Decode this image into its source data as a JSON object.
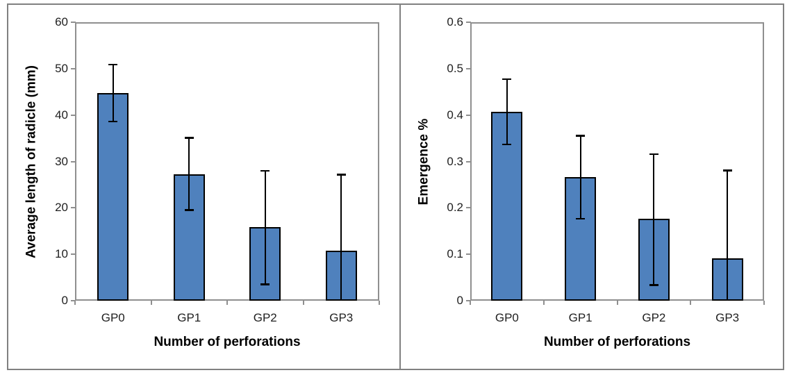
{
  "figure": {
    "background": "#ffffff",
    "frame_color": "#808080",
    "plot_border_color": "#8f8f8f",
    "text_color": "#1f1f1f"
  },
  "chart_data": [
    {
      "type": "bar",
      "panel": "left",
      "categories": [
        "GP0",
        "GP1",
        "GP2",
        "GP3"
      ],
      "values": [
        44.7,
        27.3,
        15.8,
        10.8
      ],
      "error_high": [
        50.9,
        35.1,
        28.0,
        27.2
      ],
      "error_low": [
        38.6,
        19.5,
        3.5,
        0
      ],
      "error_low_capped": [
        true,
        true,
        true,
        false
      ],
      "xlabel": "Number of perforations",
      "ylabel": "Average length of radicle (mm)",
      "ylim": [
        0,
        60
      ],
      "yticks": [
        0,
        10,
        20,
        30,
        40,
        50,
        60
      ],
      "ytick_labels": [
        "0",
        "10",
        "20",
        "30",
        "40",
        "50",
        "60"
      ],
      "bar_color": "#4F81BD",
      "bar_border_color": "#000000",
      "error_bar_color": "#000000",
      "grid": false,
      "legend": null
    },
    {
      "type": "bar",
      "panel": "right",
      "categories": [
        "GP0",
        "GP1",
        "GP2",
        "GP3"
      ],
      "values": [
        0.407,
        0.266,
        0.176,
        0.092
      ],
      "error_high": [
        0.478,
        0.356,
        0.316,
        0.281
      ],
      "error_low": [
        0.336,
        0.176,
        0.033,
        0
      ],
      "error_low_capped": [
        true,
        true,
        true,
        false
      ],
      "xlabel": "Number of perforations",
      "ylabel": "Emergence %",
      "ylim": [
        0,
        0.6
      ],
      "yticks": [
        0,
        0.1,
        0.2,
        0.3,
        0.4,
        0.5,
        0.6
      ],
      "ytick_labels": [
        "0",
        "0.1",
        "0.2",
        "0.3",
        "0.4",
        "0.5",
        "0.6"
      ],
      "bar_color": "#4F81BD",
      "bar_border_color": "#000000",
      "error_bar_color": "#000000",
      "grid": false,
      "legend": null
    }
  ]
}
